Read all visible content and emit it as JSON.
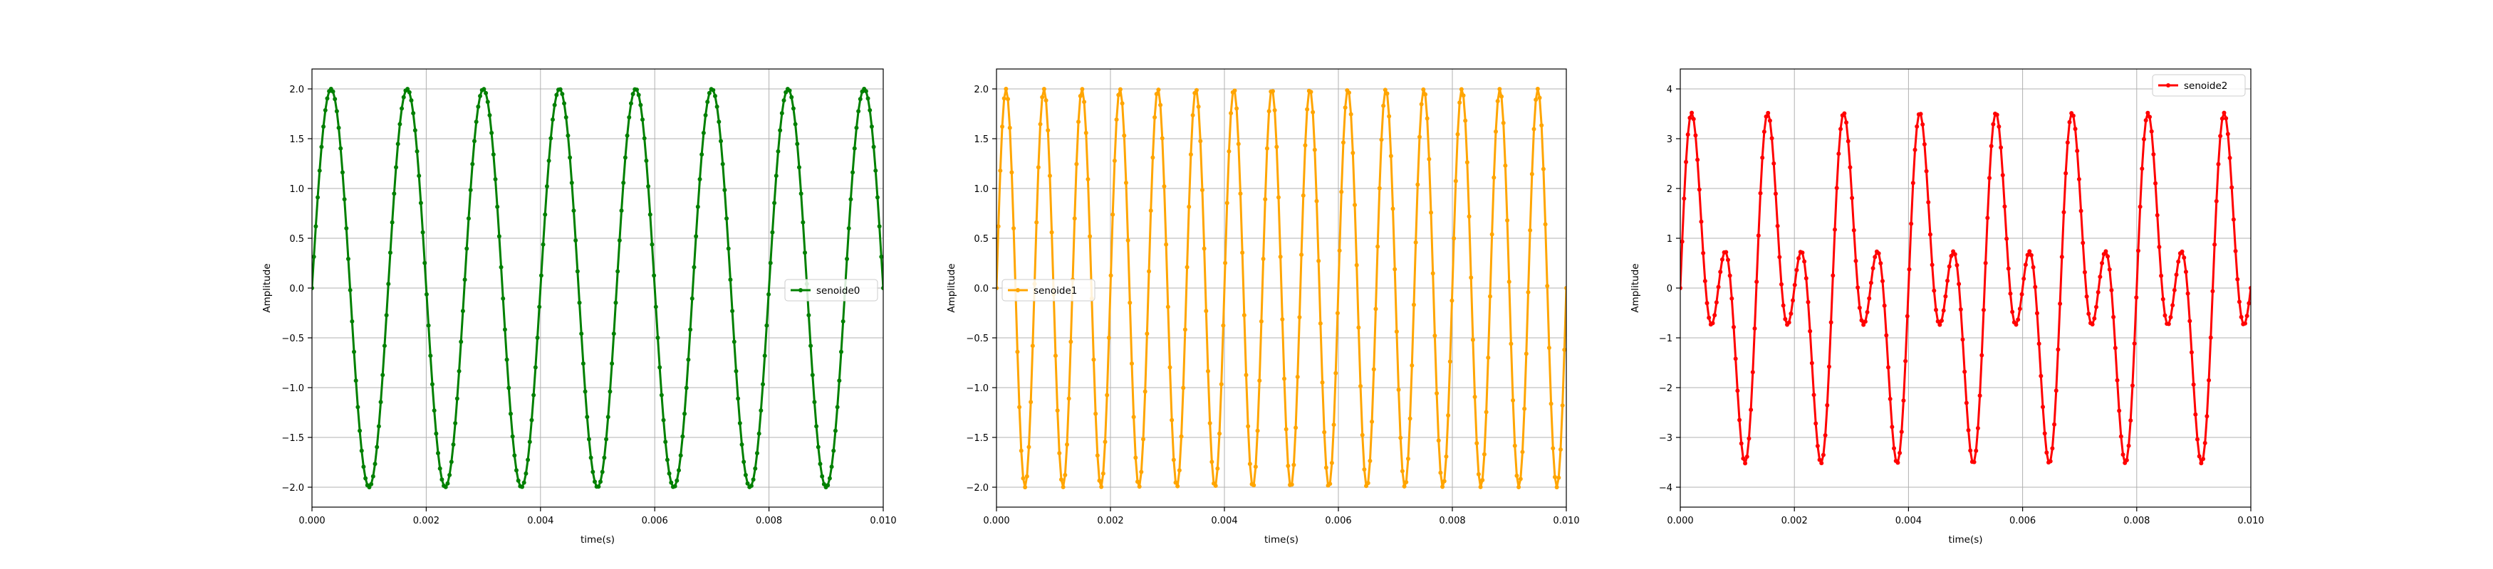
{
  "chart_data": [
    {
      "type": "line",
      "xlabel": "time(s)",
      "ylabel": "Amplitude",
      "xlim": [
        0,
        0.01
      ],
      "ylim": [
        -2.2,
        2.2
      ],
      "xticks": [
        0,
        0.002,
        0.004,
        0.006,
        0.008,
        0.01
      ],
      "xtick_labels": [
        "0.000",
        "0.002",
        "0.004",
        "0.006",
        "0.008",
        "0.010"
      ],
      "yticks": [
        -2,
        -1.5,
        -1,
        -0.5,
        0,
        0.5,
        1,
        1.5,
        2
      ],
      "ytick_labels": [
        "−2.0",
        "−1.5",
        "−1.0",
        "−0.5",
        "0.0",
        "0.5",
        "1.0",
        "1.5",
        "2.0"
      ],
      "grid": true,
      "legend_position": "center-right",
      "series": [
        {
          "name": "senoide0",
          "color": "#008000",
          "marker": "point",
          "components": [
            {
              "amplitude": 2,
              "frequency_hz": 750
            }
          ],
          "x_start": 0,
          "x_end": 0.01,
          "samples": 300
        }
      ]
    },
    {
      "type": "line",
      "xlabel": "time(s)",
      "ylabel": "Amplitude",
      "xlim": [
        0,
        0.01
      ],
      "ylim": [
        -2.2,
        2.2
      ],
      "xticks": [
        0,
        0.002,
        0.004,
        0.006,
        0.008,
        0.01
      ],
      "xtick_labels": [
        "0.000",
        "0.002",
        "0.004",
        "0.006",
        "0.008",
        "0.010"
      ],
      "yticks": [
        -2,
        -1.5,
        -1,
        -0.5,
        0,
        0.5,
        1,
        1.5,
        2
      ],
      "ytick_labels": [
        "−2.0",
        "−1.5",
        "−1.0",
        "−0.5",
        "0.0",
        "0.5",
        "1.0",
        "1.5",
        "2.0"
      ],
      "grid": true,
      "legend_position": "center-left",
      "series": [
        {
          "name": "senoide1",
          "color": "#FFA500",
          "marker": "point",
          "components": [
            {
              "amplitude": 2,
              "frequency_hz": 1500
            }
          ],
          "x_start": 0,
          "x_end": 0.01,
          "samples": 300
        }
      ]
    },
    {
      "type": "line",
      "xlabel": "time(s)",
      "ylabel": "Amplitude",
      "xlim": [
        0,
        0.01
      ],
      "ylim": [
        -4.4,
        4.4
      ],
      "xticks": [
        0,
        0.002,
        0.004,
        0.006,
        0.008,
        0.01
      ],
      "xtick_labels": [
        "0.000",
        "0.002",
        "0.004",
        "0.006",
        "0.008",
        "0.010"
      ],
      "yticks": [
        -4,
        -3,
        -2,
        -1,
        0,
        1,
        2,
        3,
        4
      ],
      "ytick_labels": [
        "−4",
        "−3",
        "−2",
        "−1",
        "0",
        "1",
        "2",
        "3",
        "4"
      ],
      "grid": true,
      "legend_position": "top-right",
      "series": [
        {
          "name": "senoide2",
          "color": "#FF0000",
          "marker": "point",
          "components": [
            {
              "amplitude": 2,
              "frequency_hz": 750
            },
            {
              "amplitude": 2,
              "frequency_hz": 1500
            }
          ],
          "x_start": 0,
          "x_end": 0.01,
          "samples": 300
        }
      ]
    }
  ]
}
